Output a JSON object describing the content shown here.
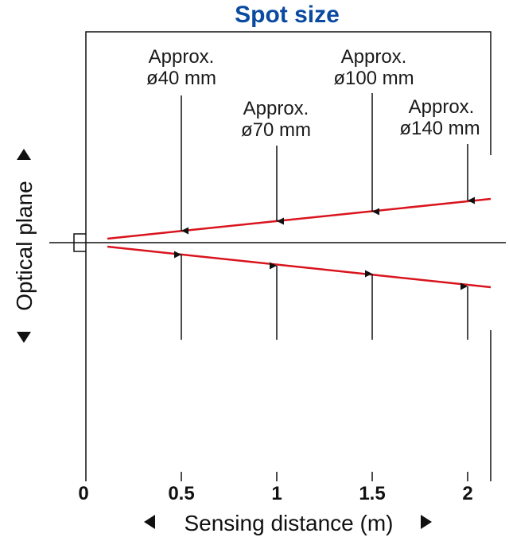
{
  "title": "Spot size",
  "y_axis_label": "Optical plane",
  "x_axis_label": "Sensing distance (m)",
  "x_ticks": [
    "0",
    "0.5",
    "1",
    "1.5",
    "2"
  ],
  "beam_color": "#d9141e",
  "title_color": "#0a4aa0",
  "spots": [
    {
      "distance": "0.5",
      "line1": "Approx.",
      "line2": "ø40 mm"
    },
    {
      "distance": "1",
      "line1": "Approx.",
      "line2": "ø70 mm"
    },
    {
      "distance": "1.5",
      "line1": "Approx.",
      "line2": "ø100 mm"
    },
    {
      "distance": "2",
      "line1": "Approx.",
      "line2": "ø140 mm"
    }
  ]
}
